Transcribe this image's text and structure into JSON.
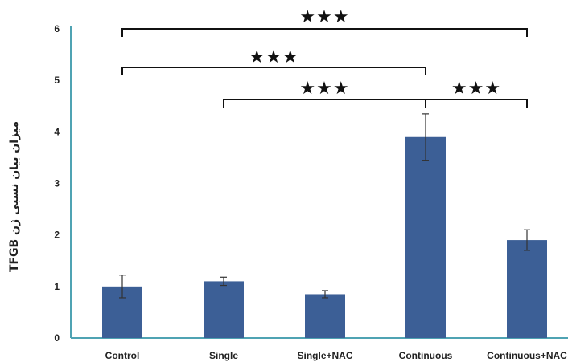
{
  "chart_data": {
    "type": "bar",
    "title": "",
    "xlabel": "",
    "ylabel": "میزان بیان نسبی ژن TFGB",
    "ylim": [
      0,
      6
    ],
    "yticks": [
      "0",
      "1",
      "2",
      "3",
      "4",
      "5",
      "6"
    ],
    "grid": false,
    "categories": [
      "Control",
      "Single",
      "Single+NAC",
      "Continuous",
      "Continuous+NAC"
    ],
    "values": [
      1.0,
      1.1,
      0.85,
      3.9,
      1.9
    ],
    "errors": [
      0.22,
      0.08,
      0.07,
      0.45,
      0.2
    ],
    "bar_color": "#3C5F96",
    "axis_color": "#4FA3B3",
    "significance": [
      {
        "from": 0,
        "to": 4,
        "label": "★★★"
      },
      {
        "from": 0,
        "to": 3,
        "label": "★★★"
      },
      {
        "from": 1,
        "to": 3,
        "label": "★★★"
      },
      {
        "from": 3,
        "to": 4,
        "label": "★★★"
      }
    ]
  }
}
